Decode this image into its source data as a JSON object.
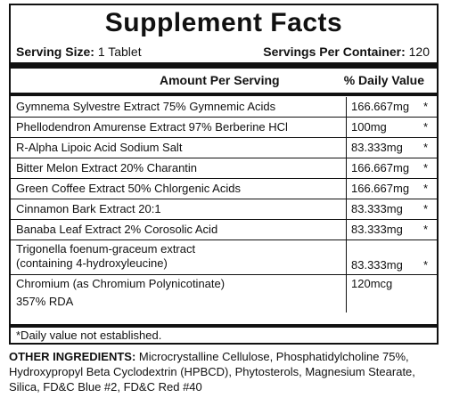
{
  "title": "Supplement Facts",
  "serving": {
    "size_label": "Serving Size:",
    "size_value": "1 Tablet",
    "per_container_label": "Servings Per Container:",
    "per_container_value": "120"
  },
  "columns": {
    "amount": "Amount Per Serving",
    "daily_value": "% Daily Value"
  },
  "ingredients": [
    {
      "name": "Gymnema Sylvestre Extract 75% Gymnemic Acids",
      "amount": "166.667mg",
      "dv": "*"
    },
    {
      "name": "Phellodendron Amurense Extract 97% Berberine HCl",
      "amount": "100mg",
      "dv": "*"
    },
    {
      "name": "R-Alpha Lipoic Acid Sodium Salt",
      "amount": "83.333mg",
      "dv": "*"
    },
    {
      "name": "Bitter Melon Extract 20% Charantin",
      "amount": "166.667mg",
      "dv": "*"
    },
    {
      "name": "Green Coffee Extract 50% Chlorgenic Acids",
      "amount": "166.667mg",
      "dv": "*"
    },
    {
      "name": "Cinnamon Bark Extract 20:1",
      "amount": "83.333mg",
      "dv": "*"
    },
    {
      "name": "Banaba Leaf Extract 2% Corosolic Acid",
      "amount": "83.333mg",
      "dv": "*"
    },
    {
      "name_line1": "Trigonella foenum-graceum extract",
      "name_line2": "(containing 4-hydroxyleucine)",
      "amount": "83.333mg",
      "dv": "*"
    },
    {
      "name": "Chromium (as Chromium Polynicotinate)",
      "amount": "120mcg",
      "rda": "357% RDA"
    }
  ],
  "footnote": "*Daily value not established.",
  "other_ingredients": {
    "label": "OTHER INGREDIENTS:",
    "text": " Microcrystalline Cellulose, Phosphatidylcholine 75%, Hydroxypropyl Beta Cyclodextrin (HPBCD), Phytosterols, Magnesium Stearate, Silica, FD&C Blue #2, FD&C Red #40"
  }
}
